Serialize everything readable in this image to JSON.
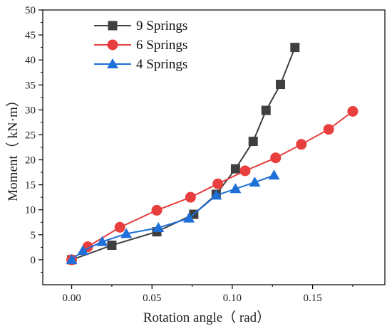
{
  "chart_data": {
    "type": "line",
    "xlabel": "Rotation angle（ rad）",
    "ylabel": "Moment（ kN·m）",
    "xlim": [
      -0.018,
      0.195
    ],
    "ylim": [
      -5,
      50
    ],
    "xticks": [
      0.0,
      0.05,
      0.1,
      0.15
    ],
    "xtick_labels": [
      "0.00",
      "0.05",
      "0.10",
      "0.15"
    ],
    "yticks": [
      0,
      5,
      10,
      15,
      20,
      25,
      30,
      35,
      40,
      45,
      50
    ],
    "ytick_labels": [
      "0",
      "5",
      "10",
      "15",
      "20",
      "25",
      "30",
      "35",
      "40",
      "45",
      "50"
    ],
    "grid": false,
    "legend_position": "top-left",
    "series": [
      {
        "name": "9 Springs",
        "color": "#3f3f3f",
        "marker": "square",
        "x": [
          0.0,
          0.025,
          0.053,
          0.076,
          0.09,
          0.102,
          0.113,
          0.121,
          0.13,
          0.139
        ],
        "y": [
          0.0,
          2.9,
          5.6,
          9.1,
          13.1,
          18.2,
          23.7,
          29.9,
          35.1,
          42.5
        ]
      },
      {
        "name": "6 Springs",
        "color": "#e83e3e",
        "marker": "circle",
        "x": [
          0.0,
          0.01,
          0.03,
          0.053,
          0.074,
          0.091,
          0.108,
          0.127,
          0.143,
          0.16,
          0.175
        ],
        "y": [
          0.0,
          2.6,
          6.5,
          9.9,
          12.5,
          15.2,
          17.8,
          20.4,
          23.1,
          26.1,
          29.7
        ]
      },
      {
        "name": "4 Springs",
        "color": "#1f6fd8",
        "marker": "triangle",
        "x": [
          0.0,
          0.007,
          0.019,
          0.034,
          0.054,
          0.073,
          0.09,
          0.102,
          0.114,
          0.126
        ],
        "y": [
          0.0,
          1.8,
          3.6,
          5.2,
          6.4,
          8.3,
          12.9,
          14.2,
          15.5,
          16.9
        ]
      }
    ]
  }
}
